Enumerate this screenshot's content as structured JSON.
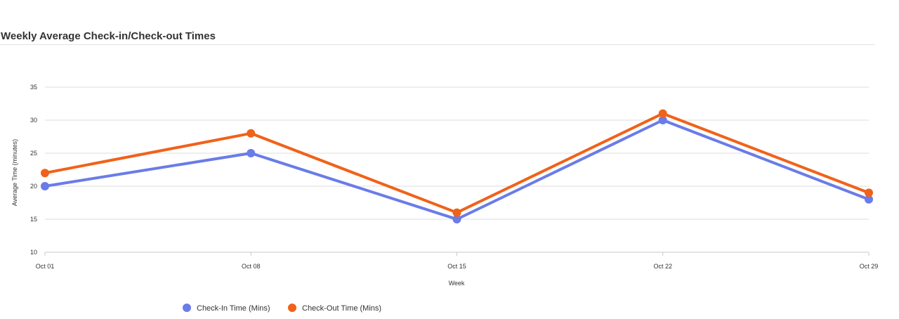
{
  "title": "Weekly Average Check-in/Check-out Times",
  "chart_data": {
    "type": "line",
    "title": "Weekly Average Check-in/Check-out Times",
    "xlabel": "Week",
    "ylabel": "Average Time (minutes)",
    "categories": [
      "Oct 01",
      "Oct 08",
      "Oct 15",
      "Oct 22",
      "Oct 29"
    ],
    "ylim": [
      10,
      35
    ],
    "yticks": [
      10,
      15,
      20,
      25,
      30,
      35
    ],
    "grid": true,
    "legend_position": "bottom",
    "series": [
      {
        "name": "Check-In Time (Mins)",
        "values": [
          20,
          25,
          15,
          30,
          18
        ],
        "color": "#6a7ce8"
      },
      {
        "name": "Check-Out Time (Mins)",
        "values": [
          22,
          28,
          16,
          31,
          19
        ],
        "color": "#f0621a"
      }
    ]
  }
}
